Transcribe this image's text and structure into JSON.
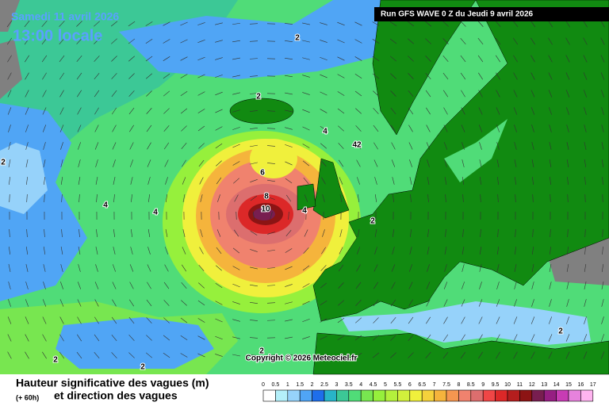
{
  "header": {
    "date": "Samedi 11 avril 2026",
    "time": "13:00 locale",
    "run": "Run GFS WAVE 0 Z du Jeudi 9 avril 2026"
  },
  "copyright": "Copyright © 2026 Meteociel.fr",
  "contour_labels": [
    "2",
    "2",
    "2",
    "2",
    "2",
    "2",
    "2",
    "2",
    "4",
    "4",
    "4",
    "4",
    "42",
    "6",
    "8",
    "10"
  ],
  "legend": {
    "title_line1": "Hauteur significative des vagues (m)",
    "lead": "(+ 60h)",
    "title_line2": "et direction des vagues",
    "labels": [
      0,
      0.5,
      1,
      1.5,
      2,
      2.5,
      3,
      3.5,
      4,
      4.5,
      5,
      5.5,
      6,
      6.5,
      7,
      7.5,
      8,
      8.5,
      9,
      9.5,
      10,
      11,
      12,
      13,
      14,
      15,
      16,
      17
    ],
    "colors": [
      "#ffffff",
      "#b4f0fa",
      "#96d2fa",
      "#50a5f5",
      "#1e6eeb",
      "#28b4c8",
      "#3cc896",
      "#50dc78",
      "#78e650",
      "#96f03c",
      "#b4f03c",
      "#d2f03c",
      "#f0f03c",
      "#f5d23c",
      "#f5b43c",
      "#f59650",
      "#f0826e",
      "#dc6e6e",
      "#f04646",
      "#dc2828",
      "#b41e1e",
      "#8c1414",
      "#781e50",
      "#961e82",
      "#c83cb4",
      "#e682dc",
      "#ffb4f0"
    ]
  }
}
